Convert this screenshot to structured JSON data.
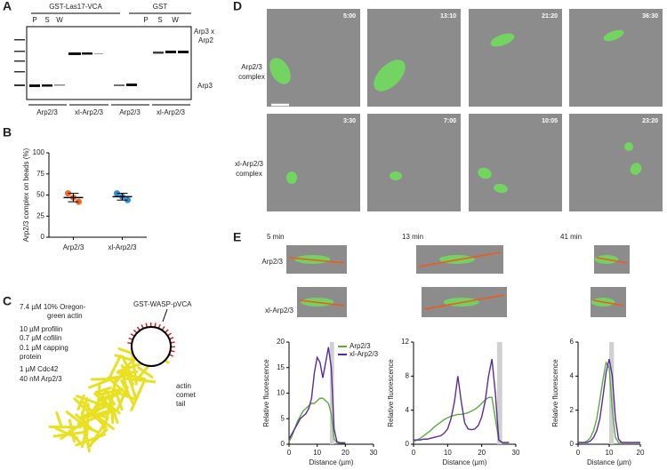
{
  "panel_labels": [
    "A",
    "B",
    "C",
    "D",
    "E"
  ],
  "panel_a": {
    "headers": [
      "GST-Las17-VCA",
      "GST"
    ],
    "lanes": [
      "P",
      "S",
      "W",
      "P",
      "S",
      "W"
    ],
    "band_labels": [
      "Arp3 x",
      "Arp2",
      "Arp3"
    ],
    "groups": [
      "Arp2/3",
      "xl-Arp2/3",
      "Arp2/3",
      "xl-Arp2/3"
    ]
  },
  "panel_c": {
    "conditions": [
      "7.4 µM 10% Oregon-",
      "green actin",
      "10 µM profilin",
      "0.7 µM cofilin",
      "0.1 µM capping",
      "protein",
      "1 µM Cdc42",
      "40 nM Arp2/3"
    ],
    "bead_label": "GST-WASP-pVCA",
    "tail_label": [
      "actin",
      "comet",
      "tail"
    ]
  },
  "panel_d": {
    "rows": [
      {
        "label": [
          "Arp2/3",
          "complex"
        ],
        "times": [
          "5:00",
          "13:10",
          "21:20",
          "36:30"
        ]
      },
      {
        "label": [
          "xl-Arp2/3",
          "complex"
        ],
        "times": [
          "3:30",
          "7:00",
          "10:05",
          "23:20"
        ]
      }
    ]
  },
  "panel_e": {
    "row_labels": [
      "Arp2/3",
      "xl-Arp2/3"
    ]
  },
  "chart_data": [
    {
      "type": "dot",
      "ylabel": "Arp2/3 complex on beads (%)",
      "categories": [
        "Arp2/3",
        "xl-Arp2/3"
      ],
      "points": [
        [
          52,
          47,
          42
        ],
        [
          52,
          48,
          44
        ]
      ],
      "mean": [
        47,
        48
      ],
      "sd": [
        5,
        4
      ],
      "colors": [
        "#f26b21",
        "#2a8fd6"
      ],
      "ylim": [
        0,
        100
      ],
      "yticks": [
        0,
        25,
        50,
        75,
        100
      ]
    },
    {
      "type": "line",
      "title": "5 min",
      "xlabel": "Distance (µm)",
      "ylabel": "Relative fluorescence",
      "x": [
        0,
        1,
        2,
        3,
        4,
        5,
        6,
        7,
        8,
        9,
        10,
        11,
        12,
        13,
        14,
        15,
        16,
        17,
        18,
        19,
        20
      ],
      "series": [
        {
          "name": "Arp2/3",
          "color": "#5aab3c",
          "values": [
            0.5,
            1.5,
            3,
            4.5,
            5.5,
            6.5,
            7,
            7.5,
            8,
            8,
            8.5,
            9,
            9,
            8.5,
            8,
            6,
            1,
            0.3,
            0.2,
            0.2,
            0.2
          ]
        },
        {
          "name": "xl-Arp2/3",
          "color": "#5b2a9a",
          "values": [
            1,
            2,
            3,
            4,
            5,
            5.5,
            6,
            7,
            9,
            14,
            17,
            16,
            13,
            16,
            19,
            15,
            3,
            0.5,
            0.3,
            0.3,
            0.3
          ]
        }
      ],
      "shaded_range": [
        14.5,
        16
      ],
      "xlim": [
        0,
        30
      ],
      "xticks": [
        0,
        10,
        20,
        30
      ],
      "ylim": [
        0,
        20
      ],
      "yticks": [
        0,
        5,
        10,
        15,
        20
      ]
    },
    {
      "type": "line",
      "title": "13 min",
      "xlabel": "Distance (µm)",
      "ylabel": "Relative fluorescence",
      "x": [
        0,
        1,
        2,
        3,
        4,
        5,
        6,
        7,
        8,
        9,
        10,
        11,
        12,
        13,
        14,
        15,
        16,
        17,
        18,
        19,
        20,
        21,
        22,
        23,
        24,
        25,
        26,
        27,
        28
      ],
      "series": [
        {
          "color": "#5aab3c",
          "values": [
            0.3,
            0.5,
            0.7,
            1,
            1.3,
            1.6,
            2,
            2.3,
            2.6,
            2.9,
            3.1,
            3.3,
            3.4,
            3.5,
            3.5,
            3.6,
            3.7,
            3.9,
            4.1,
            4.4,
            4.8,
            5.2,
            5.5,
            5.5,
            3,
            0.5,
            0.2,
            0.2,
            0.2
          ]
        },
        {
          "color": "#5b2a9a",
          "values": [
            0.5,
            0.5,
            0.5,
            0.6,
            0.6,
            0.7,
            0.8,
            0.9,
            1,
            1.3,
            1.8,
            3,
            5,
            8,
            5,
            2.5,
            1.8,
            1.7,
            1.8,
            2.2,
            3.2,
            5,
            8,
            10,
            6,
            0.5,
            0.2,
            0.2,
            0.2
          ]
        }
      ],
      "shaded_range": [
        24.5,
        26
      ],
      "xlim": [
        0,
        30
      ],
      "xticks": [
        0,
        10,
        20,
        30
      ],
      "ylim": [
        0,
        12
      ],
      "yticks": [
        0,
        4,
        8,
        12
      ]
    },
    {
      "type": "line",
      "title": "41 min",
      "xlabel": "Distance (µm)",
      "ylabel": "Relative fluorescence",
      "x": [
        0,
        1,
        2,
        3,
        4,
        5,
        6,
        7,
        8,
        9,
        10,
        11,
        12,
        13,
        14,
        15,
        16,
        17,
        18,
        19,
        20
      ],
      "series": [
        {
          "color": "#5aab3c",
          "values": [
            0.1,
            0.1,
            0.1,
            0.2,
            0.4,
            0.8,
            1.5,
            2.6,
            3.8,
            4.8,
            4.5,
            2,
            0.4,
            0.1,
            0.1,
            0.1,
            0.1,
            0.1,
            0.1,
            0.1,
            0.1
          ]
        },
        {
          "color": "#5b2a9a",
          "values": [
            0.1,
            0.1,
            0.1,
            0.1,
            0.2,
            0.4,
            0.8,
            1.5,
            2.8,
            4.2,
            5,
            4,
            1.5,
            0.3,
            0.1,
            0.1,
            0.1,
            0.1,
            0.1,
            0.1,
            0.1
          ]
        }
      ],
      "shaded_range": [
        10,
        11.5
      ],
      "xlim": [
        0,
        20
      ],
      "xticks": [
        0,
        10,
        20
      ],
      "ylim": [
        0,
        6
      ],
      "yticks": [
        0,
        2,
        4,
        6
      ]
    }
  ]
}
